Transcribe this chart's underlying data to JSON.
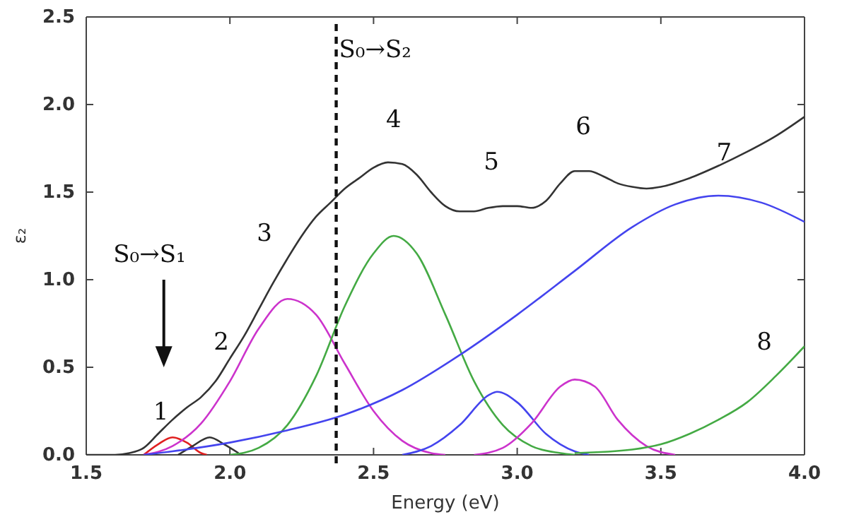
{
  "chart_data": {
    "type": "line",
    "xlabel": "Energy (eV)",
    "ylabel": "ε₂",
    "xlim": [
      1.5,
      4.0
    ],
    "ylim": [
      0,
      2.5
    ],
    "xticks": [
      1.5,
      {
        "value": 2,
        "label": "2.0"
      },
      2.5,
      {
        "value": 3,
        "label": "3.0"
      },
      3.5,
      {
        "value": 4,
        "label": "4.0"
      }
    ],
    "yticks": [
      {
        "value": 0,
        "label": "0.0"
      },
      0.5,
      {
        "value": 1,
        "label": "1.0"
      },
      1.5,
      {
        "value": 2,
        "label": "2.0"
      },
      2.5
    ],
    "grid": false,
    "marker": "none",
    "line_style": "solid",
    "series": [
      {
        "color": "#333333",
        "x": [
          1.5,
          1.6,
          1.65,
          1.7,
          1.75,
          1.8,
          1.85,
          1.9,
          1.95,
          2.0,
          2.05,
          2.1,
          2.15,
          2.2,
          2.25,
          2.3,
          2.35,
          2.4,
          2.45,
          2.5,
          2.55,
          2.6,
          2.65,
          2.7,
          2.75,
          2.8,
          2.85,
          2.9,
          2.95,
          3.0,
          3.05,
          3.1,
          3.15,
          3.2,
          3.25,
          3.3,
          3.35,
          3.4,
          3.45,
          3.5,
          3.6,
          3.7,
          3.8,
          3.9,
          4.0
        ],
        "values": [
          0,
          0,
          0.01,
          0.04,
          0.12,
          0.2,
          0.27,
          0.33,
          0.42,
          0.55,
          0.68,
          0.83,
          0.98,
          1.12,
          1.25,
          1.36,
          1.44,
          1.52,
          1.58,
          1.64,
          1.67,
          1.66,
          1.6,
          1.5,
          1.42,
          1.39,
          1.39,
          1.41,
          1.42,
          1.42,
          1.41,
          1.45,
          1.55,
          1.62,
          1.62,
          1.59,
          1.55,
          1.53,
          1.52,
          1.53,
          1.58,
          1.65,
          1.73,
          1.82,
          1.93
        ]
      },
      {
        "color": "#e02020",
        "x": [
          1.7,
          1.75,
          1.8,
          1.85,
          1.9,
          1.92
        ],
        "values": [
          0,
          0.06,
          0.1,
          0.07,
          0.01,
          0
        ]
      },
      {
        "color": "#333333",
        "x": [
          1.82,
          1.87,
          1.93,
          1.98,
          2.03
        ],
        "values": [
          0,
          0.05,
          0.1,
          0.06,
          0.01
        ]
      },
      {
        "color": "#cc33cc",
        "x": [
          1.7,
          1.8,
          1.9,
          2.0,
          2.1,
          2.2,
          2.3,
          2.4,
          2.5,
          2.6,
          2.7,
          2.75
        ],
        "values": [
          0,
          0.05,
          0.18,
          0.42,
          0.72,
          0.89,
          0.8,
          0.52,
          0.25,
          0.08,
          0.01,
          0
        ]
      },
      {
        "color": "#44aa44",
        "x": [
          2.0,
          2.1,
          2.2,
          2.3,
          2.4,
          2.5,
          2.57,
          2.65,
          2.75,
          2.85,
          2.95,
          3.05,
          3.15,
          3.2
        ],
        "values": [
          0,
          0.04,
          0.17,
          0.45,
          0.85,
          1.15,
          1.25,
          1.15,
          0.8,
          0.42,
          0.17,
          0.05,
          0.01,
          0
        ]
      },
      {
        "color": "#4444ee",
        "x": [
          1.7,
          1.8,
          2.0,
          2.2,
          2.4,
          2.6,
          2.8,
          3.0,
          3.2,
          3.4,
          3.55,
          3.7,
          3.85,
          4.0
        ],
        "values": [
          0,
          0.02,
          0.07,
          0.14,
          0.23,
          0.37,
          0.57,
          0.8,
          1.05,
          1.3,
          1.43,
          1.48,
          1.44,
          1.33
        ]
      },
      {
        "color": "#4444ee",
        "x": [
          2.6,
          2.7,
          2.8,
          2.9,
          2.93,
          3.0,
          3.1,
          3.2,
          3.25
        ],
        "values": [
          0,
          0.05,
          0.17,
          0.34,
          0.36,
          0.3,
          0.12,
          0.02,
          0
        ]
      },
      {
        "color": "#cc33cc",
        "x": [
          2.85,
          2.95,
          3.05,
          3.15,
          3.2,
          3.27,
          3.35,
          3.45,
          3.55
        ],
        "values": [
          0,
          0.04,
          0.18,
          0.39,
          0.43,
          0.39,
          0.2,
          0.05,
          0
        ]
      },
      {
        "color": "#44aa44",
        "x": [
          3.2,
          3.4,
          3.5,
          3.6,
          3.7,
          3.8,
          3.9,
          4.0
        ],
        "values": [
          0.01,
          0.03,
          0.06,
          0.12,
          0.2,
          0.3,
          0.45,
          0.62
        ]
      }
    ],
    "ref_lines": [
      {
        "axis": "x",
        "value": 2.37,
        "label": "S₀→S₂",
        "color": "#111111",
        "line_style": "dashed"
      }
    ],
    "annotations": [
      "S₀→S₁",
      "1",
      "2",
      "3",
      "4",
      "5",
      "6",
      "7",
      "8"
    ]
  }
}
